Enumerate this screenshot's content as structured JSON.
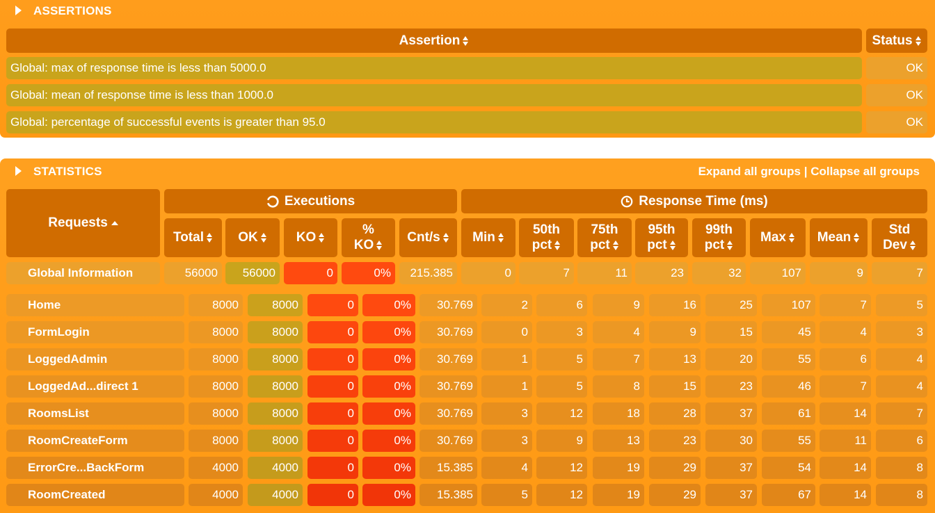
{
  "assertions": {
    "title": "ASSERTIONS",
    "col_assertion": "Assertion",
    "col_status": "Status",
    "rows": [
      {
        "text": "Global: max of response time is less than 5000.0",
        "status": "OK"
      },
      {
        "text": "Global: mean of response time is less than 1000.0",
        "status": "OK"
      },
      {
        "text": "Global: percentage of successful events is greater than 95.0",
        "status": "OK"
      }
    ]
  },
  "statistics": {
    "title": "STATISTICS",
    "expand_label": "Expand all groups",
    "separator": "|",
    "collapse_label": "Collapse all groups",
    "group_executions": "Executions",
    "group_response": "Response Time (ms)",
    "col_requests": "Requests",
    "cols": [
      {
        "l1": "Total",
        "l2": ""
      },
      {
        "l1": "OK",
        "l2": ""
      },
      {
        "l1": "KO",
        "l2": ""
      },
      {
        "l1": "%",
        "l2": "KO"
      },
      {
        "l1": "Cnt/s",
        "l2": ""
      },
      {
        "l1": "Min",
        "l2": ""
      },
      {
        "l1": "50th",
        "l2": "pct"
      },
      {
        "l1": "75th",
        "l2": "pct"
      },
      {
        "l1": "95th",
        "l2": "pct"
      },
      {
        "l1": "99th",
        "l2": "pct"
      },
      {
        "l1": "Max",
        "l2": ""
      },
      {
        "l1": "Mean",
        "l2": ""
      },
      {
        "l1": "Std",
        "l2": "Dev"
      }
    ],
    "global": {
      "name": "Global Information",
      "values": [
        "56000",
        "56000",
        "0",
        "0%",
        "215.385",
        "0",
        "7",
        "11",
        "23",
        "32",
        "107",
        "9",
        "7"
      ]
    },
    "rows": [
      {
        "name": "Home",
        "values": [
          "8000",
          "8000",
          "0",
          "0%",
          "30.769",
          "2",
          "6",
          "9",
          "16",
          "25",
          "107",
          "7",
          "5"
        ]
      },
      {
        "name": "FormLogin",
        "values": [
          "8000",
          "8000",
          "0",
          "0%",
          "30.769",
          "0",
          "3",
          "4",
          "9",
          "15",
          "45",
          "4",
          "3"
        ]
      },
      {
        "name": "LoggedAdmin",
        "values": [
          "8000",
          "8000",
          "0",
          "0%",
          "30.769",
          "1",
          "5",
          "7",
          "13",
          "20",
          "55",
          "6",
          "4"
        ]
      },
      {
        "name": "LoggedAd...direct 1",
        "values": [
          "8000",
          "8000",
          "0",
          "0%",
          "30.769",
          "1",
          "5",
          "8",
          "15",
          "23",
          "46",
          "7",
          "4"
        ]
      },
      {
        "name": "RoomsList",
        "values": [
          "8000",
          "8000",
          "0",
          "0%",
          "30.769",
          "3",
          "12",
          "18",
          "28",
          "37",
          "61",
          "14",
          "7"
        ]
      },
      {
        "name": "RoomCreateForm",
        "values": [
          "8000",
          "8000",
          "0",
          "0%",
          "30.769",
          "3",
          "9",
          "13",
          "23",
          "30",
          "55",
          "11",
          "6"
        ]
      },
      {
        "name": "ErrorCre...BackForm",
        "values": [
          "4000",
          "4000",
          "0",
          "0%",
          "15.385",
          "4",
          "12",
          "19",
          "29",
          "37",
          "54",
          "14",
          "8"
        ]
      },
      {
        "name": "RoomCreated",
        "values": [
          "4000",
          "4000",
          "0",
          "0%",
          "15.385",
          "5",
          "12",
          "19",
          "29",
          "37",
          "67",
          "14",
          "8"
        ]
      }
    ]
  },
  "colors": {
    "panel": "#ff9d1c",
    "header": "#d06c00",
    "ok": "#c9a41c",
    "ko": "#ff4a0f"
  }
}
